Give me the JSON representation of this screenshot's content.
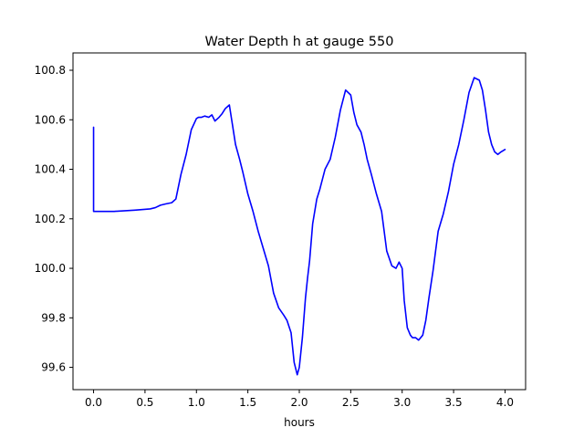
{
  "chart_data": {
    "type": "line",
    "title": "Water Depth h at gauge 550",
    "xlabel": "hours",
    "ylabel": "",
    "xlim": [
      -0.2,
      4.2
    ],
    "ylim": [
      99.51,
      100.87
    ],
    "xticks": [
      0.0,
      0.5,
      1.0,
      1.5,
      2.0,
      2.5,
      3.0,
      3.5,
      4.0
    ],
    "xtick_labels": [
      "0.0",
      "0.5",
      "1.0",
      "1.5",
      "2.0",
      "2.5",
      "3.0",
      "3.5",
      "4.0"
    ],
    "yticks": [
      99.6,
      99.8,
      100.0,
      100.2,
      100.4,
      100.6,
      100.8
    ],
    "ytick_labels": [
      "99.6",
      "99.8",
      "100.0",
      "100.2",
      "100.4",
      "100.6",
      "100.8"
    ],
    "grid": false,
    "legend": "none",
    "series": [
      {
        "color": "#0000ff",
        "x": [
          0.0,
          0.0,
          0.2,
          0.4,
          0.55,
          0.6,
          0.65,
          0.7,
          0.76,
          0.8,
          0.85,
          0.9,
          0.95,
          1.0,
          1.02,
          1.05,
          1.08,
          1.12,
          1.15,
          1.18,
          1.22,
          1.25,
          1.28,
          1.32,
          1.35,
          1.38,
          1.42,
          1.45,
          1.5,
          1.55,
          1.6,
          1.65,
          1.7,
          1.75,
          1.8,
          1.85,
          1.88,
          1.92,
          1.95,
          1.98,
          2.0,
          2.03,
          2.06,
          2.08,
          2.1,
          2.13,
          2.17,
          2.2,
          2.25,
          2.3,
          2.35,
          2.4,
          2.45,
          2.5,
          2.53,
          2.56,
          2.6,
          2.63,
          2.66,
          2.7,
          2.75,
          2.8,
          2.85,
          2.9,
          2.94,
          2.97,
          3.0,
          3.02,
          3.05,
          3.08,
          3.1,
          3.13,
          3.16,
          3.2,
          3.23,
          3.26,
          3.3,
          3.35,
          3.4,
          3.45,
          3.5,
          3.55,
          3.6,
          3.65,
          3.7,
          3.75,
          3.78,
          3.81,
          3.84,
          3.87,
          3.9,
          3.93,
          3.96,
          4.0
        ],
        "y": [
          100.57,
          100.23,
          100.23,
          100.235,
          100.24,
          100.245,
          100.255,
          100.26,
          100.265,
          100.28,
          100.38,
          100.46,
          100.56,
          100.605,
          100.61,
          100.61,
          100.615,
          100.61,
          100.62,
          100.595,
          100.61,
          100.625,
          100.645,
          100.66,
          100.58,
          100.5,
          100.44,
          100.39,
          100.3,
          100.23,
          100.15,
          100.08,
          100.01,
          99.9,
          99.84,
          99.81,
          99.79,
          99.74,
          99.62,
          99.57,
          99.6,
          99.72,
          99.88,
          99.96,
          100.03,
          100.18,
          100.28,
          100.32,
          100.4,
          100.44,
          100.53,
          100.64,
          100.72,
          100.7,
          100.63,
          100.58,
          100.55,
          100.5,
          100.44,
          100.38,
          100.3,
          100.23,
          100.07,
          100.01,
          100.0,
          100.025,
          100.0,
          99.87,
          99.76,
          99.73,
          99.72,
          99.72,
          99.71,
          99.73,
          99.79,
          99.88,
          99.99,
          100.15,
          100.22,
          100.31,
          100.42,
          100.5,
          100.6,
          100.71,
          100.77,
          100.76,
          100.72,
          100.64,
          100.55,
          100.5,
          100.47,
          100.46,
          100.47,
          100.48
        ]
      }
    ]
  }
}
